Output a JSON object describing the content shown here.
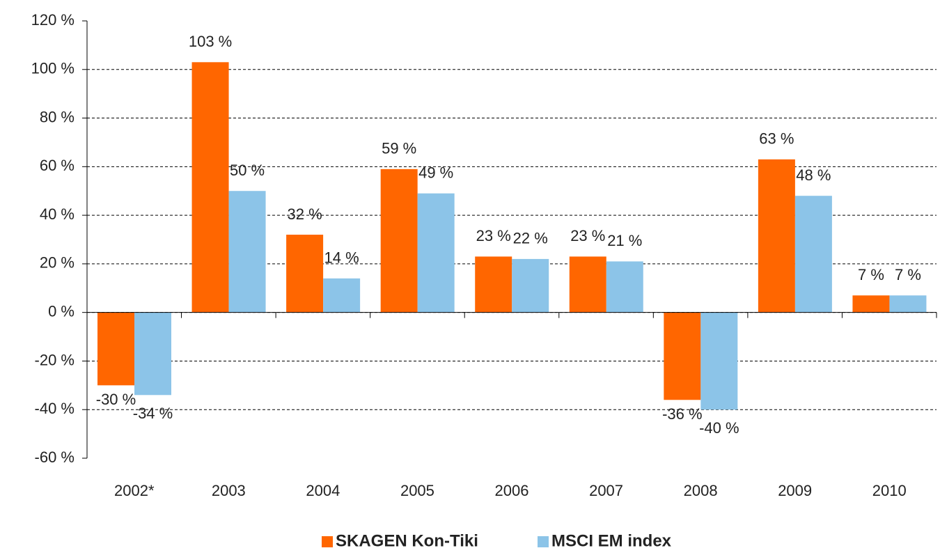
{
  "chart_data": {
    "type": "bar",
    "categories": [
      "2002*",
      "2003",
      "2004",
      "2005",
      "2006",
      "2007",
      "2008",
      "2009",
      "2010"
    ],
    "series": [
      {
        "name": "SKAGEN Kon-Tiki",
        "color": "#ff6600",
        "values": [
          -30,
          103,
          32,
          59,
          23,
          23,
          -36,
          63,
          7
        ],
        "value_labels": [
          "-30 %",
          "103 %",
          "32 %",
          "59 %",
          "23 %",
          "23 %",
          "-36 %",
          "63 %",
          "7 %"
        ]
      },
      {
        "name": "MSCI EM index",
        "color": "#8cc4e8",
        "values": [
          -34,
          50,
          14,
          49,
          22,
          21,
          -40,
          48,
          7
        ],
        "value_labels": [
          "-34 %",
          "50 %",
          "14 %",
          "49 %",
          "22 %",
          "21 %",
          "-40 %",
          "48 %",
          "7 %"
        ]
      }
    ],
    "ylim": [
      -60,
      120
    ],
    "yticks": [
      {
        "value": -60,
        "label": "-60 %"
      },
      {
        "value": -40,
        "label": "-40 %"
      },
      {
        "value": -20,
        "label": "-20 %"
      },
      {
        "value": 0,
        "label": "0 %"
      },
      {
        "value": 20,
        "label": "20 %"
      },
      {
        "value": 40,
        "label": "40 %"
      },
      {
        "value": 60,
        "label": "60 %"
      },
      {
        "value": 80,
        "label": "80 %"
      },
      {
        "value": 100,
        "label": "100 %"
      },
      {
        "value": 120,
        "label": "120 %"
      }
    ],
    "grid": true,
    "legend": "bottom"
  }
}
